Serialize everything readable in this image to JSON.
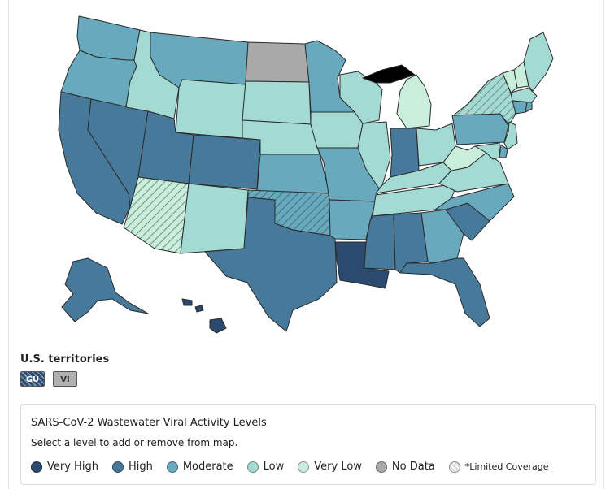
{
  "colors": {
    "very_high": "#2b4a70",
    "high": "#47799a",
    "moderate": "#68a9bd",
    "low": "#a3dad4",
    "very_low": "#c9eedb",
    "no_data": "#a9a9a9",
    "hatch": "#6f8f85"
  },
  "states": {
    "WA": "moderate",
    "OR": "moderate",
    "CA": "high",
    "NV": "high",
    "ID": "low",
    "MT": "moderate",
    "WY": "low",
    "UT": "high",
    "CO": "high",
    "AZ": "very_low_limited",
    "NM": "low",
    "ND": "no_data",
    "SD": "low",
    "NE": "low",
    "KS": "moderate",
    "OK": "moderate_limited",
    "TX": "high",
    "MN": "moderate",
    "IA": "low",
    "MO": "moderate",
    "AR": "moderate",
    "LA": "very_high",
    "WI": "low",
    "IL": "low",
    "MI": "very_low",
    "IN": "high",
    "OH": "low",
    "KY": "low",
    "TN": "low",
    "MS": "high",
    "AL": "high",
    "GA": "moderate",
    "FL": "high",
    "SC": "high",
    "NC": "moderate",
    "VA": "low",
    "WV": "very_low",
    "PA": "moderate",
    "NY": "low_limited",
    "VT": "very_low",
    "NH": "very_low",
    "ME": "low",
    "MA": "low",
    "CT": "moderate",
    "RI": "moderate",
    "NJ": "low",
    "DE": "moderate",
    "MD": "low",
    "AK": "high",
    "HI": "very_high"
  },
  "territories": {
    "title": "U.S. territories",
    "items": [
      {
        "code": "GU",
        "level": "very_high",
        "limited": true
      },
      {
        "code": "VI",
        "level": "no_data",
        "limited": false
      }
    ]
  },
  "legend": {
    "title": "SARS-CoV-2 Wastewater Viral Activity Levels",
    "subtitle": "Select a level to add or remove from map.",
    "items": [
      {
        "key": "very_high",
        "label": "Very High"
      },
      {
        "key": "high",
        "label": "High"
      },
      {
        "key": "moderate",
        "label": "Moderate"
      },
      {
        "key": "low",
        "label": "Low"
      },
      {
        "key": "very_low",
        "label": "Very Low"
      },
      {
        "key": "no_data",
        "label": "No Data"
      },
      {
        "key": "limited",
        "label": "*Limited Coverage"
      }
    ]
  }
}
